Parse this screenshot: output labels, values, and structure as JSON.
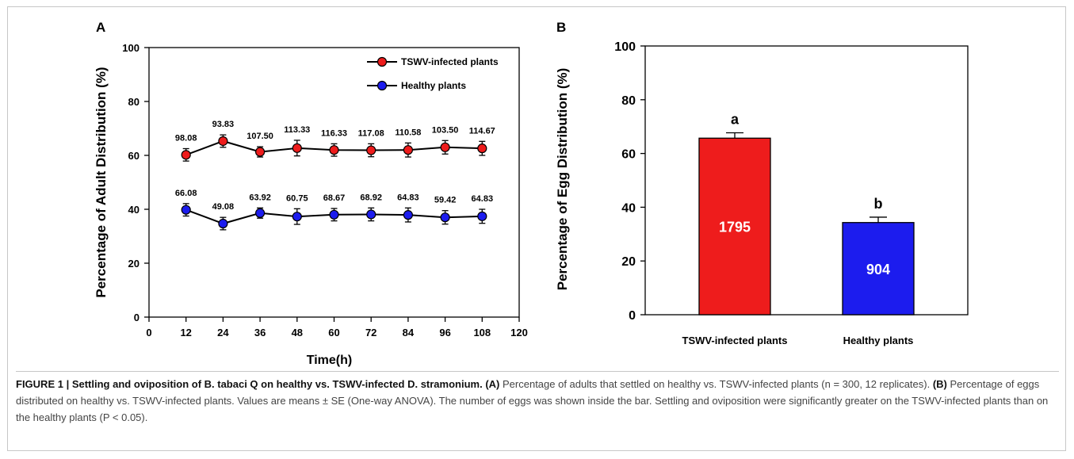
{
  "chart_data": [
    {
      "panel_label": "A",
      "type": "line",
      "xlabel": "Time(h)",
      "ylabel": "Percentage of Adult Distribution (%)",
      "xlim": [
        0,
        120
      ],
      "ylim": [
        0,
        100
      ],
      "xticks": [
        0,
        12,
        24,
        36,
        48,
        60,
        72,
        84,
        96,
        108,
        120
      ],
      "yticks": [
        0,
        20,
        40,
        60,
        80,
        100
      ],
      "grid": false,
      "legend_position": "top-right",
      "x": [
        12,
        24,
        36,
        48,
        60,
        72,
        84,
        96,
        108
      ],
      "series": [
        {
          "name": "TSWV-infected plants",
          "color": "#ee1c1c",
          "values": [
            60.2,
            65.3,
            61.3,
            62.7,
            62.0,
            61.9,
            62.0,
            63.0,
            62.6
          ],
          "errors": [
            2.3,
            2.3,
            1.9,
            2.9,
            2.3,
            2.4,
            2.6,
            2.5,
            2.6
          ],
          "point_labels": [
            "98.08",
            "93.83",
            "107.50",
            "113.33",
            "116.33",
            "117.08",
            "110.58",
            "103.50",
            "114.67"
          ]
        },
        {
          "name": "Healthy plants",
          "color": "#1c1cee",
          "values": [
            39.8,
            34.7,
            38.6,
            37.3,
            38.0,
            38.1,
            37.9,
            37.0,
            37.4
          ],
          "errors": [
            2.3,
            2.3,
            1.9,
            2.9,
            2.3,
            2.4,
            2.6,
            2.5,
            2.6
          ],
          "point_labels": [
            "66.08",
            "49.08",
            "63.92",
            "60.75",
            "68.67",
            "68.92",
            "64.83",
            "59.42",
            "64.83"
          ]
        }
      ]
    },
    {
      "panel_label": "B",
      "type": "bar",
      "ylabel": "Percentage of Egg Distribution (%)",
      "ylim": [
        0,
        100
      ],
      "yticks": [
        0,
        20,
        40,
        60,
        80,
        100
      ],
      "grid": false,
      "categories": [
        "TSWV-infected plants",
        "Healthy plants"
      ],
      "values": [
        65.7,
        34.3
      ],
      "errors": [
        2.0,
        2.0
      ],
      "colors": [
        "#ee1c1c",
        "#1c1cee"
      ],
      "bar_labels": [
        "1795",
        "904"
      ],
      "significance_letters": [
        "a",
        "b"
      ]
    }
  ],
  "caption": {
    "title": "FIGURE 1 | Settling and oviposition of B. tabaci Q on healthy vs. TSWV-infected D. stramonium.",
    "part_a_label": "(A)",
    "part_a_text": "Percentage of adults that settled on healthy vs. TSWV-infected plants (n = 300, 12 replicates).",
    "part_b_label": "(B)",
    "part_b_text": "Percentage of eggs distributed on healthy vs. TSWV-infected plants. Values are means ± SE (One-way ANOVA). The number of eggs was shown inside the bar. Settling and oviposition were significantly greater on the TSWV-infected plants than on the healthy plants (P < 0.05)."
  }
}
